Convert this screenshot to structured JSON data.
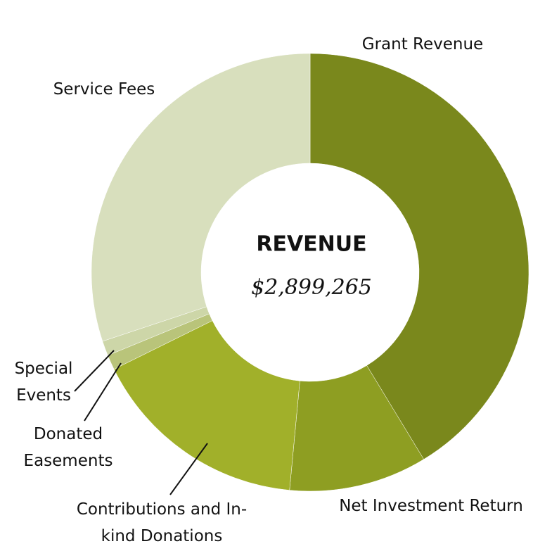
{
  "chart_data": {
    "type": "donut",
    "center_title": "REVENUE",
    "center_value": "$2,899,265",
    "categories": [
      "Grant Revenue",
      "Net Investment Return",
      "Contributions and In-kind Donations",
      "Donated Easements",
      "Special Events",
      "Service Fees"
    ],
    "values": [
      41.3,
      10.2,
      16.2,
      1.1,
      1.1,
      30.1
    ],
    "colors": [
      "#7a881c",
      "#8e9e22",
      "#a1b02a",
      "#b9c47a",
      "#cdd6a8",
      "#d8dfbd"
    ]
  }
}
